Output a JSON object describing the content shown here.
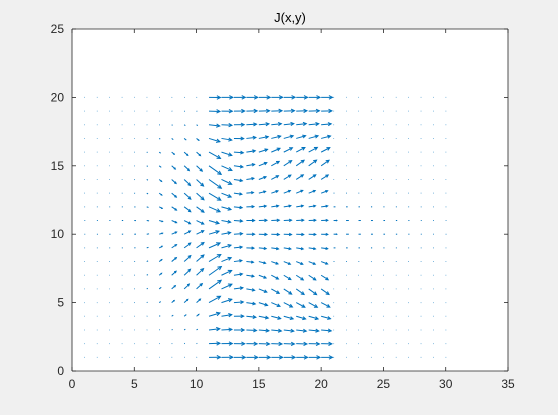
{
  "chart_data": {
    "type": "quiver",
    "title": "J(x,y)",
    "xlabel": "",
    "ylabel": "",
    "xlim": [
      0,
      35
    ],
    "ylim": [
      0,
      25
    ],
    "xticks": [
      0,
      5,
      10,
      15,
      20,
      25,
      30,
      35
    ],
    "yticks": [
      0,
      5,
      10,
      15,
      20,
      25
    ],
    "grid": false,
    "legend": "none",
    "series_color": "#0072BD",
    "grid_x": {
      "start": 1,
      "stop": 30,
      "step": 1
    },
    "grid_y": {
      "start": 1,
      "stop": 20,
      "step": 1
    },
    "field_region_note_x": [
      10,
      20
    ],
    "arrow_scale": 0.9,
    "sample_vectors": [
      {
        "x": 11,
        "y": 20,
        "u": 1.0,
        "v": 0.0
      },
      {
        "x": 15,
        "y": 18,
        "u": 1.0,
        "v": 0.02
      },
      {
        "x": 15,
        "y": 14,
        "u": 0.95,
        "v": 0.25
      },
      {
        "x": 10,
        "y": 13,
        "u": 0.55,
        "v": -0.6
      },
      {
        "x": 15,
        "y": 10,
        "u": 0.9,
        "v": 0.0
      },
      {
        "x": 10,
        "y": 7,
        "u": 0.55,
        "v": 0.6
      },
      {
        "x": 15,
        "y": 6,
        "u": 0.95,
        "v": -0.25
      },
      {
        "x": 15,
        "y": 2,
        "u": 1.0,
        "v": -0.02
      }
    ]
  }
}
